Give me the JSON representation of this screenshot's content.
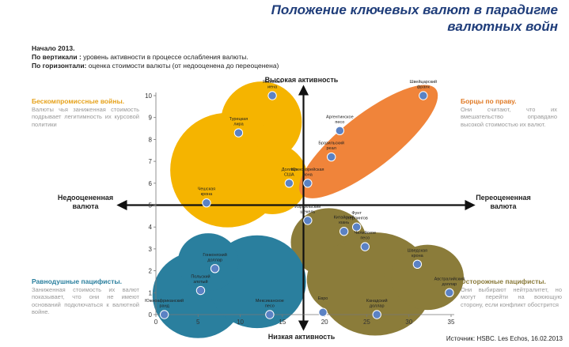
{
  "title": "Положение ключевых валют в парадигме валютных войн",
  "intro": {
    "line1": "Начало 2013.",
    "line2_bold": "По вертикали :",
    "line2": " уровень активности в процессе ослабления валюты.",
    "line3_bold": "По горизонтали:",
    "line3": " оценка стоимости валюты (от недооценена до переоценена)"
  },
  "quadrants": {
    "top_left": {
      "head": "Бескомпромиссные войны.",
      "text": "Валюты чья заниженная стоимость подрывает легитимность их курсовой политики"
    },
    "top_right": {
      "head": "Борцы по праву.",
      "text": "Они считают, что их вмешательство оправдано высокой стоимостью их валют."
    },
    "bottom_left": {
      "head": "Равнодушные пацифисты.",
      "text": "Заниженная стоимость их валют показывает, что они не имеют оснований подключаться к валютной войне."
    },
    "bottom_right": {
      "head": "Осторожные пацифисты.",
      "text": "Они выбирают нейтралитет, но могут перейти на воюющую сторону, если конфликт обострится"
    }
  },
  "source": "Источник: HSBC. Les Echos, 16.02.2013",
  "colors": {
    "yellow": "#f5b400",
    "orange": "#f0843a",
    "teal": "#2a7f9e",
    "olive": "#8b7c3a",
    "point": "#5b82c4",
    "title": "#1f3d7a"
  },
  "chart_data": {
    "type": "scatter",
    "xlim": [
      0,
      35
    ],
    "ylim": [
      0,
      10
    ],
    "x_ticks": [
      0,
      5,
      10,
      15,
      20,
      25,
      30,
      35
    ],
    "y_ticks": [
      0,
      1,
      2,
      3,
      4,
      5,
      6,
      7,
      8,
      9,
      10
    ],
    "axis_center": {
      "x": 17.5,
      "y": 5
    },
    "labels": {
      "top": "Высокая активность",
      "bottom": "Низкая активность",
      "left": "Недооцененная валюта",
      "right": "Переоцененная валюта"
    },
    "points": [
      {
        "label": "Японская иена",
        "x": 13.8,
        "y": 10.0
      },
      {
        "label": "Турецкая лира",
        "x": 9.8,
        "y": 8.3
      },
      {
        "label": "Доллар США",
        "x": 15.8,
        "y": 6.0
      },
      {
        "label": "Чешская крона",
        "x": 6.0,
        "y": 5.1
      },
      {
        "label": "Швейцарский франк",
        "x": 31.7,
        "y": 10.0
      },
      {
        "label": "Аргентинское песо",
        "x": 21.8,
        "y": 8.4
      },
      {
        "label": "Бразильский реал",
        "x": 20.8,
        "y": 7.2
      },
      {
        "label": "Южнокорейская вона",
        "x": 18.0,
        "y": 6.0
      },
      {
        "label": "Израильский шекель",
        "x": 18.0,
        "y": 4.3
      },
      {
        "label": "Фунт стерлингов",
        "x": 23.8,
        "y": 4.0
      },
      {
        "label": "Китайский юань",
        "x": 22.3,
        "y": 3.8
      },
      {
        "label": "Чилийское песо",
        "x": 24.8,
        "y": 3.1
      },
      {
        "label": "Шведская крона",
        "x": 31.0,
        "y": 2.3
      },
      {
        "label": "Австралийский доллар",
        "x": 34.8,
        "y": 1.0
      },
      {
        "label": "Евро",
        "x": 19.8,
        "y": 0.1
      },
      {
        "label": "Канадский доллар",
        "x": 26.2,
        "y": 0.0
      },
      {
        "label": "Гонконгский доллар",
        "x": 7.0,
        "y": 2.1
      },
      {
        "label": "Польский злотый",
        "x": 5.3,
        "y": 1.1
      },
      {
        "label": "Южноафриканский ранд",
        "x": 1.0,
        "y": 0.0
      },
      {
        "label": "Мексиканское песо",
        "x": 13.5,
        "y": 0.0
      }
    ]
  }
}
